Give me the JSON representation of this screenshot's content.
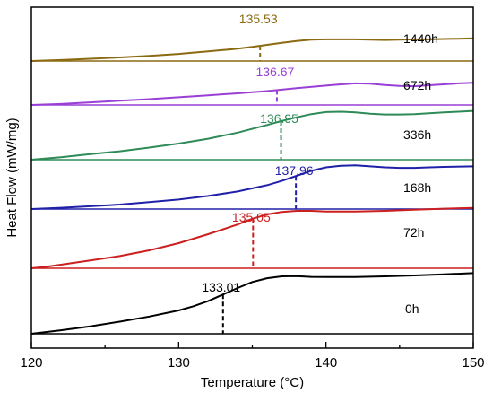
{
  "chart_data": {
    "type": "line",
    "xlabel": "Temperature (°C)",
    "ylabel": "Heat Flow (mW/mg)",
    "xlim": [
      120,
      150
    ],
    "x_ticks": [
      "120",
      "130",
      "140",
      "150"
    ],
    "y_ticks_shown": false,
    "grid": false,
    "series_labels_position": "right",
    "series": [
      {
        "name": "1440h",
        "color": "#8B6A12",
        "peak_temperature": 135.53,
        "peak_label": "135.53",
        "x": [
          120,
          122,
          124,
          126,
          128,
          130,
          131,
          132,
          133,
          134,
          135,
          136,
          137,
          138,
          139,
          140,
          141,
          142,
          143,
          144,
          145,
          146,
          147,
          148,
          149,
          150
        ],
        "y": [
          0.0,
          0.03,
          0.07,
          0.11,
          0.16,
          0.22,
          0.26,
          0.3,
          0.34,
          0.38,
          0.44,
          0.5,
          0.56,
          0.62,
          0.66,
          0.67,
          0.67,
          0.67,
          0.66,
          0.65,
          0.66,
          0.67,
          0.67,
          0.68,
          0.69,
          0.7
        ]
      },
      {
        "name": "672h",
        "color": "#9A3FD5",
        "peak_temperature": 136.67,
        "peak_label": "136.67",
        "x": [
          120,
          122,
          124,
          126,
          128,
          130,
          132,
          134,
          136,
          138,
          140,
          141,
          142,
          143,
          144,
          145,
          146,
          147,
          148,
          149,
          150
        ],
        "y": [
          0.0,
          0.03,
          0.08,
          0.13,
          0.18,
          0.24,
          0.3,
          0.36,
          0.43,
          0.52,
          0.6,
          0.64,
          0.67,
          0.66,
          0.62,
          0.59,
          0.58,
          0.61,
          0.64,
          0.67,
          0.69
        ]
      },
      {
        "name": "336h",
        "color": "#2E8B57",
        "peak_temperature": 136.95,
        "peak_label": "136.95",
        "x": [
          120,
          122,
          124,
          126,
          128,
          130,
          132,
          134,
          136,
          137,
          138,
          139,
          140,
          141,
          142,
          143,
          144,
          145,
          146,
          147,
          148,
          149,
          150
        ],
        "y": [
          0.0,
          0.06,
          0.14,
          0.21,
          0.3,
          0.4,
          0.52,
          0.67,
          0.86,
          0.96,
          1.05,
          1.13,
          1.18,
          1.19,
          1.17,
          1.14,
          1.12,
          1.12,
          1.13,
          1.15,
          1.17,
          1.19,
          1.21
        ]
      },
      {
        "name": "168h",
        "color": "#2020A8",
        "peak_temperature": 137.96,
        "peak_label": "137.96",
        "x": [
          120,
          122,
          124,
          126,
          128,
          130,
          132,
          134,
          136,
          137,
          138,
          139,
          140,
          141,
          142,
          143,
          144,
          145,
          146,
          147,
          148,
          150
        ],
        "y": [
          0.0,
          0.05,
          0.11,
          0.18,
          0.28,
          0.38,
          0.52,
          0.7,
          0.95,
          1.12,
          1.32,
          1.52,
          1.66,
          1.72,
          1.74,
          1.7,
          1.66,
          1.64,
          1.64,
          1.66,
          1.68,
          1.7
        ]
      },
      {
        "name": "72h",
        "color": "#CC1F1F",
        "peak_temperature": 135.05,
        "peak_label": "135.05",
        "x": [
          120,
          121,
          122,
          124,
          126,
          128,
          130,
          132,
          134,
          135,
          136,
          137,
          138,
          139,
          140,
          142,
          144,
          146,
          148,
          150
        ],
        "y": [
          0.0,
          0.04,
          0.1,
          0.22,
          0.34,
          0.5,
          0.7,
          0.95,
          1.22,
          1.38,
          1.5,
          1.57,
          1.6,
          1.6,
          1.58,
          1.58,
          1.6,
          1.63,
          1.66,
          1.68
        ]
      },
      {
        "name": "0h",
        "color": "#000000",
        "peak_temperature": 133.01,
        "peak_label": "133.01",
        "x": [
          120,
          122,
          124,
          126,
          128,
          130,
          131,
          132,
          133,
          134,
          135,
          136,
          137,
          138,
          139,
          140,
          142,
          144,
          146,
          148,
          150
        ],
        "y": [
          0.0,
          0.15,
          0.32,
          0.52,
          0.74,
          1.0,
          1.18,
          1.4,
          1.68,
          1.96,
          2.22,
          2.38,
          2.46,
          2.47,
          2.44,
          2.43,
          2.43,
          2.46,
          2.5,
          2.55,
          2.6
        ]
      }
    ]
  }
}
